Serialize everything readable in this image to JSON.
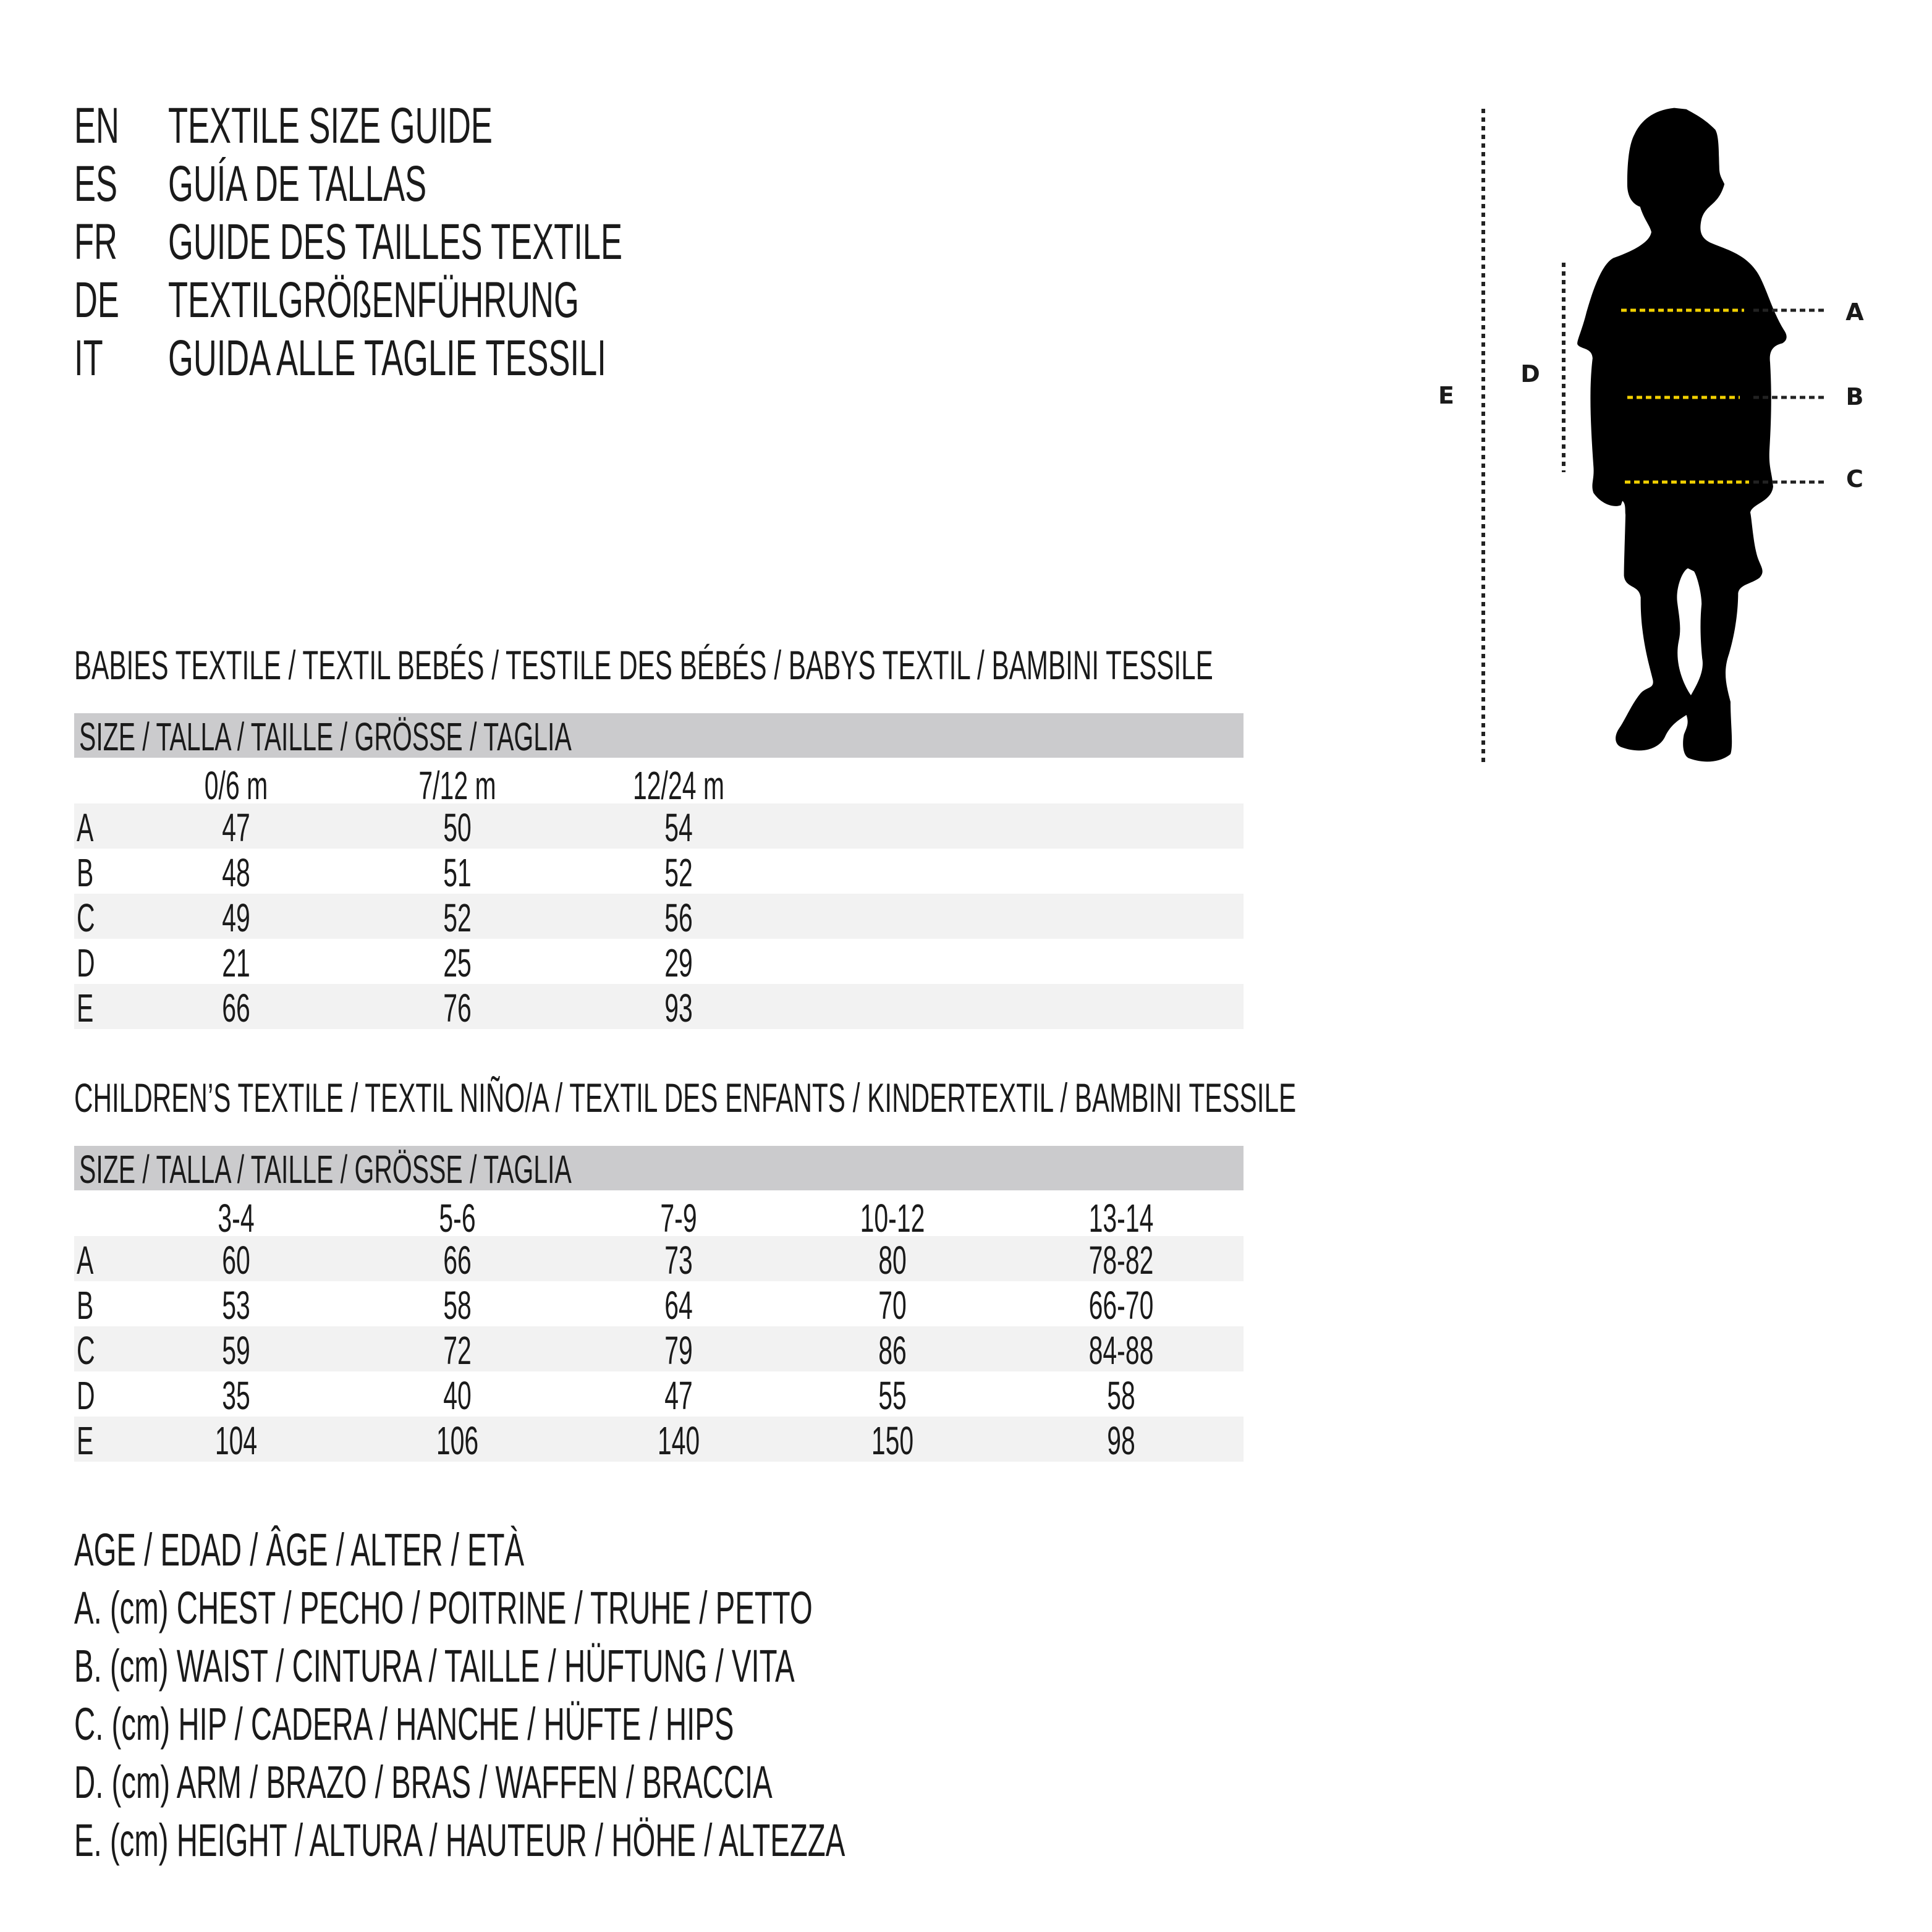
{
  "title_block": [
    {
      "code": "EN",
      "text": "TEXTILE SIZE GUIDE"
    },
    {
      "code": "ES",
      "text": "GUÍA DE TALLAS"
    },
    {
      "code": "FR",
      "text": "GUIDE DES TAILLES TEXTILE"
    },
    {
      "code": "DE",
      "text": "TEXTILGRÖßENFÜHRUNG"
    },
    {
      "code": "IT",
      "text": "GUIDA ALLE TAGLIE TESSILI"
    }
  ],
  "babies": {
    "heading": "BABIES TEXTILE / TEXTIL BEBÉS / TESTILE DES BÉBÉS / BABYS TEXTIL / BAMBINI TESSILE",
    "size_header": "SIZE / TALLA / TAILLE / GRÖSSE / TAGLIA",
    "columns": [
      "0/6 m",
      "7/12 m",
      "12/24 m"
    ],
    "rows": [
      {
        "label": "A",
        "values": [
          "47",
          "50",
          "54"
        ]
      },
      {
        "label": "B",
        "values": [
          "48",
          "51",
          "52"
        ]
      },
      {
        "label": "C",
        "values": [
          "49",
          "52",
          "56"
        ]
      },
      {
        "label": "D",
        "values": [
          "21",
          "25",
          "29"
        ]
      },
      {
        "label": "E",
        "values": [
          "66",
          "76",
          "93"
        ]
      }
    ]
  },
  "children": {
    "heading": "CHILDREN’S TEXTILE / TEXTIL NIÑO/A / TEXTIL DES ENFANTS / KINDERTEXTIL / BAMBINI TESSILE",
    "size_header": "SIZE / TALLA / TAILLE / GRÖSSE / TAGLIA",
    "columns": [
      "3-4",
      "5-6",
      "7-9",
      "10-12",
      "13-14"
    ],
    "rows": [
      {
        "label": "A",
        "values": [
          "60",
          "66",
          "73",
          "80",
          "78-82"
        ]
      },
      {
        "label": "B",
        "values": [
          "53",
          "58",
          "64",
          "70",
          "66-70"
        ]
      },
      {
        "label": "C",
        "values": [
          "59",
          "72",
          "79",
          "86",
          "84-88"
        ]
      },
      {
        "label": "D",
        "values": [
          "35",
          "40",
          "47",
          "55",
          "58"
        ]
      },
      {
        "label": "E",
        "values": [
          "104",
          "106",
          "140",
          "150",
          "98"
        ]
      }
    ]
  },
  "legend": [
    "AGE / EDAD / ÂGE / ALTER / ETÀ",
    "A. (cm) CHEST / PECHO / POITRINE / TRUHE / PETTO",
    "B. (cm) WAIST / CINTURA / TAILLE / HÜFTUNG / VITA",
    "C. (cm) HIP / CADERA / HANCHE / HÜFTE / HIPS",
    "D. (cm) ARM / BRAZO / BRAS / WAFFEN / BRACCIA",
    "E. (cm) HEIGHT / ALTURA / HAUTEUR / HÖHE / ALTEZZA"
  ],
  "figure": {
    "labels": {
      "a": "A",
      "b": "B",
      "c": "C",
      "d": "D",
      "e": "E"
    },
    "colors": {
      "measure_line": "#f2d000",
      "guide_line": "#222222",
      "silhouette": "#000000"
    }
  }
}
